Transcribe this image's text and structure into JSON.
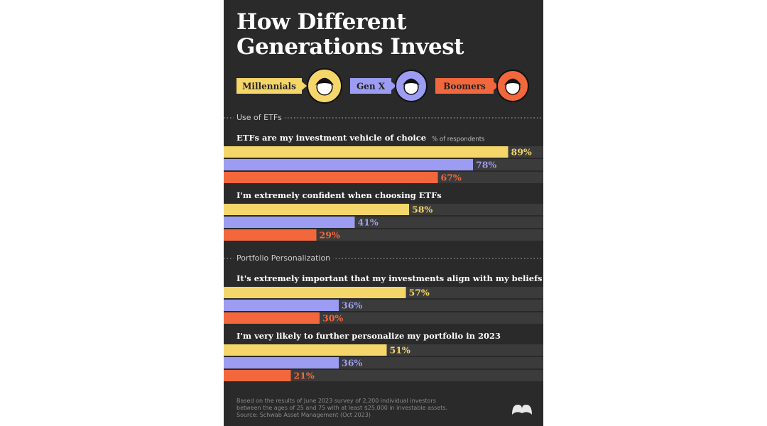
{
  "chart_data": {
    "type": "bar",
    "title": "How Different Generations Invest",
    "sections": [
      "Use of ETFs",
      "Portfolio Personalization"
    ],
    "categories": [
      "ETFs are my investment vehicle of choice",
      "I'm extremely confident when choosing ETFs",
      "It's extremely important that my investments align with my beliefs & values",
      "I'm very likely to further personalize my portfolio in 2023"
    ],
    "value_axis_label": "% of respondents",
    "xlim": [
      0,
      100
    ],
    "series": [
      {
        "name": "Millennials",
        "color": "#f5d66a",
        "values": [
          89,
          58,
          57,
          51
        ],
        "value_labels": [
          "89%",
          "58%",
          "57%",
          "51%"
        ]
      },
      {
        "name": "Gen X",
        "color": "#9c9df2",
        "values": [
          78,
          41,
          36,
          36
        ],
        "value_labels": [
          "78%",
          "41%",
          "36%",
          "36%"
        ]
      },
      {
        "name": "Boomers",
        "color": "#f2683c",
        "values": [
          67,
          29,
          30,
          21
        ],
        "value_labels": [
          "67%",
          "29%",
          "30%",
          "21%"
        ]
      }
    ],
    "note": "Based on the results of June 2023 survey of 2,200 individual investors between the ages of 25 and 75 with at least $25,000 in investable assets.",
    "source": "Source: Schwab Asset Management (Oct 2023)"
  }
}
